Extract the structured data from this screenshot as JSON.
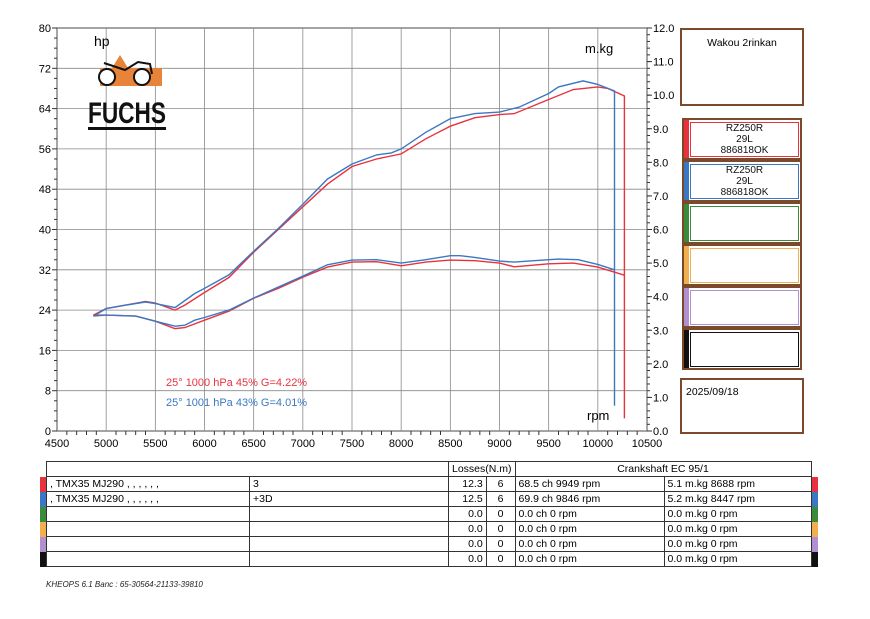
{
  "chart_data": {
    "type": "line",
    "xlabel": "rpm",
    "ylabel_left": "hp",
    "ylabel_right": "m.kg",
    "xlim": [
      4500,
      10500
    ],
    "ylim_left": [
      0,
      80
    ],
    "ylim_right": [
      0,
      12
    ],
    "x_ticks": [
      4500,
      5000,
      5500,
      6000,
      6500,
      7000,
      7500,
      8000,
      8500,
      9000,
      9500,
      10000,
      10500
    ],
    "y_ticks_left": [
      0,
      8,
      16,
      24,
      32,
      40,
      48,
      56,
      64,
      72,
      80
    ],
    "y_ticks_right": [
      "0.0",
      "1.0",
      "2.0",
      "3.0",
      "4.0",
      "5.0",
      "6.0",
      "7.0",
      "8.0",
      "9.0",
      "10.0",
      "11.0",
      "12.0"
    ],
    "grid": true,
    "series": [
      {
        "name": "red power (hp)",
        "axis": "left",
        "color": "#e8333f",
        "x": [
          4870,
          5000,
          5200,
          5400,
          5500,
          5700,
          5800,
          6000,
          6250,
          6500,
          6750,
          7000,
          7250,
          7500,
          7750,
          8000,
          8250,
          8500,
          8750,
          9000,
          9150,
          9500,
          9750,
          10000,
          10100,
          10270
        ],
        "y": [
          23.0,
          24.3,
          25.0,
          25.7,
          25.4,
          24.0,
          25.0,
          27.5,
          30.5,
          35.5,
          40.0,
          44.5,
          49.0,
          52.5,
          54.0,
          55.0,
          58.0,
          60.5,
          62.2,
          62.8,
          63.0,
          65.8,
          67.8,
          68.3,
          68.0,
          66.5
        ],
        "drop_to": 2.5
      },
      {
        "name": "blue power (hp)",
        "axis": "left",
        "color": "#3b78c4",
        "x": [
          4870,
          5000,
          5200,
          5400,
          5500,
          5700,
          5900,
          6000,
          6250,
          6500,
          6750,
          7000,
          7250,
          7500,
          7750,
          7900,
          8000,
          8250,
          8500,
          8750,
          9000,
          9200,
          9500,
          9600,
          9850,
          10000,
          10170
        ],
        "y": [
          22.8,
          24.3,
          25.0,
          25.6,
          25.3,
          24.5,
          27.3,
          28.3,
          31.0,
          35.7,
          40.2,
          45.0,
          50.0,
          53.0,
          54.8,
          55.2,
          56.0,
          59.3,
          62.0,
          63.0,
          63.3,
          64.3,
          67.0,
          68.3,
          69.5,
          68.8,
          67.5
        ],
        "drop_to": 5
      },
      {
        "name": "red torque (m.kg)",
        "axis": "right",
        "color": "#e8333f",
        "x": [
          4870,
          5000,
          5300,
          5500,
          5700,
          5800,
          6000,
          6250,
          6500,
          6750,
          7000,
          7250,
          7500,
          7750,
          8000,
          8250,
          8500,
          8750,
          9000,
          9150,
          9500,
          9750,
          10000,
          10270
        ],
        "y": [
          3.45,
          3.45,
          3.42,
          3.27,
          3.05,
          3.08,
          3.3,
          3.57,
          3.95,
          4.25,
          4.58,
          4.88,
          5.03,
          5.04,
          4.92,
          5.03,
          5.09,
          5.07,
          5.0,
          4.89,
          4.98,
          5.0,
          4.88,
          4.64
        ]
      },
      {
        "name": "blue torque (m.kg)",
        "axis": "right",
        "color": "#3b78c4",
        "x": [
          4870,
          5000,
          5300,
          5500,
          5700,
          5800,
          5900,
          6000,
          6250,
          6500,
          7000,
          7250,
          7500,
          7750,
          8000,
          8250,
          8500,
          8600,
          8750,
          9000,
          9150,
          9500,
          9600,
          9800,
          10000,
          10170
        ],
        "y": [
          3.42,
          3.45,
          3.42,
          3.27,
          3.12,
          3.15,
          3.3,
          3.38,
          3.6,
          3.96,
          4.61,
          4.95,
          5.09,
          5.1,
          5.0,
          5.1,
          5.22,
          5.22,
          5.17,
          5.06,
          5.03,
          5.1,
          5.12,
          5.1,
          4.96,
          4.8
        ]
      }
    ],
    "annotations": [
      {
        "text": "25°  1000 hPa  45%    G=4.22%",
        "color": "#e8333f"
      },
      {
        "text": "25°  1001 hPa  43%    G=4.01%",
        "color": "#3b78c4"
      }
    ]
  },
  "logo": "FUCHS",
  "right_panel": {
    "customer": "Wakou 2rinkan",
    "runs": [
      {
        "color": "#e8333f",
        "lines": [
          "RZ250R",
          "29L",
          "886818OK"
        ]
      },
      {
        "color": "#3b78c4",
        "lines": [
          "RZ250R",
          "29L",
          "886818OK"
        ]
      },
      {
        "color": "#3c8a3c",
        "lines": [
          "",
          "",
          ""
        ]
      },
      {
        "color": "#f0b050",
        "lines": [
          "",
          "",
          ""
        ]
      },
      {
        "color": "#b090d0",
        "lines": [
          "",
          "",
          ""
        ]
      },
      {
        "color": "#111111",
        "lines": [
          "",
          "",
          ""
        ]
      }
    ],
    "date": "2025/09/18"
  },
  "table": {
    "losses_header": "Losses(N.m)",
    "crank_header": "Crankshaft EC 95/1",
    "rows": [
      {
        "color": "#e8333f",
        "name": ", TMX35 MJ290 , , , , , ,",
        "note": "3",
        "loss": "12.3",
        "n": "6",
        "power": "68.5 ch 9949 rpm",
        "torque": "5.1 m.kg 8688 rpm"
      },
      {
        "color": "#3b78c4",
        "name": ", TMX35 MJ290 , , , , , ,",
        "note": "+3D",
        "loss": "12.5",
        "n": "6",
        "power": "69.9 ch 9846 rpm",
        "torque": "5.2 m.kg 8447 rpm"
      },
      {
        "color": "#3c8a3c",
        "name": "",
        "note": "",
        "loss": "0.0",
        "n": "0",
        "power": "0.0 ch 0 rpm",
        "torque": "0.0 m.kg 0 rpm"
      },
      {
        "color": "#f0b050",
        "name": "",
        "note": "",
        "loss": "0.0",
        "n": "0",
        "power": "0.0 ch 0 rpm",
        "torque": "0.0 m.kg 0 rpm"
      },
      {
        "color": "#b090d0",
        "name": "",
        "note": "",
        "loss": "0.0",
        "n": "0",
        "power": "0.0 ch 0 rpm",
        "torque": "0.0 m.kg 0 rpm"
      },
      {
        "color": "#111111",
        "name": "",
        "note": "",
        "loss": "0.0",
        "n": "0",
        "power": "0.0 ch 0 rpm",
        "torque": "0.0 m.kg 0 rpm"
      }
    ]
  },
  "footer": "KHEOPS 6.1  Banc : 65-30564-21133-39810"
}
